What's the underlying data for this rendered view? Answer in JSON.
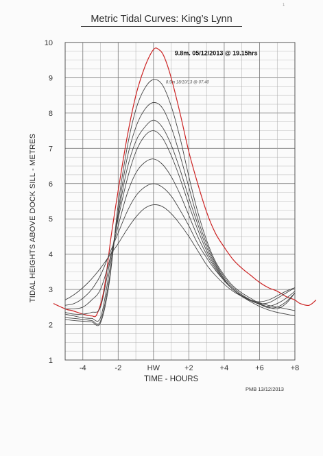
{
  "chart_data": {
    "type": "line",
    "title": "Metric Tidal Curves: King’s Lynn",
    "xlabel": "TIME - HOURS",
    "ylabel": "TIDAL HEIGHTS ABOVE DOCK SILL - METRES",
    "x_ticks": [
      {
        "value": -4,
        "label": "-4"
      },
      {
        "value": -2,
        "label": "-2"
      },
      {
        "value": 0,
        "label": "HW"
      },
      {
        "value": 2,
        "label": "+2"
      },
      {
        "value": 4,
        "label": "+4"
      },
      {
        "value": 6,
        "label": "+6"
      },
      {
        "value": 8,
        "label": "+8"
      }
    ],
    "y_ticks": [
      1,
      2,
      3,
      4,
      5,
      6,
      7,
      8,
      9,
      10
    ],
    "xlim": [
      -5,
      8
    ],
    "ylim": [
      1,
      10
    ],
    "grid": true,
    "series": [
      {
        "color": "#cc2222",
        "width": 1.2,
        "x": [
          -7.3,
          -6,
          -5,
          -4.6,
          -4,
          -3.5,
          -3.2,
          -2.8,
          -2.4,
          -2,
          -1.5,
          -1,
          -0.5,
          0,
          0.3,
          0.6,
          1,
          1.5,
          2,
          2.5,
          3,
          3.5,
          4,
          4.5,
          5,
          5.5,
          6,
          6.5,
          7,
          7.5,
          8,
          8.3,
          8.8,
          9.2
        ],
        "y": [
          3.2,
          2.7,
          2.45,
          2.4,
          2.3,
          2.25,
          2.3,
          3.0,
          4.5,
          5.8,
          7.3,
          8.5,
          9.3,
          9.8,
          9.8,
          9.6,
          9.0,
          8.0,
          6.9,
          6.0,
          5.2,
          4.6,
          4.2,
          3.85,
          3.6,
          3.4,
          3.2,
          3.05,
          2.95,
          2.8,
          2.7,
          2.6,
          2.55,
          2.7
        ]
      },
      {
        "color": "#444444",
        "width": 0.9,
        "x": [
          -5,
          -4.5,
          -4,
          -3.5,
          -3,
          -2.5,
          -2,
          -1.5,
          -1,
          -0.5,
          0,
          0.5,
          1,
          1.5,
          2,
          2.5,
          3,
          3.5,
          4,
          4.5,
          5,
          5.5,
          6,
          6.5,
          7,
          7.5,
          8
        ],
        "y": [
          2.15,
          2.12,
          2.1,
          2.08,
          2.05,
          3.2,
          5.4,
          7.0,
          8.1,
          8.7,
          8.95,
          8.8,
          8.2,
          7.3,
          6.2,
          5.2,
          4.4,
          3.8,
          3.4,
          3.1,
          2.9,
          2.75,
          2.6,
          2.5,
          2.45,
          2.6,
          2.9
        ]
      },
      {
        "color": "#444444",
        "width": 0.9,
        "x": [
          -5,
          -4.5,
          -4,
          -3.5,
          -3,
          -2.5,
          -2,
          -1.5,
          -1,
          -0.5,
          0,
          0.5,
          1,
          1.5,
          2,
          2.5,
          3,
          3.5,
          4,
          4.5,
          5,
          5.5,
          6,
          6.5,
          7,
          7.5,
          8
        ],
        "y": [
          2.2,
          2.18,
          2.15,
          2.12,
          2.1,
          3.3,
          5.2,
          6.7,
          7.6,
          8.1,
          8.3,
          8.15,
          7.6,
          6.8,
          5.9,
          5.0,
          4.3,
          3.75,
          3.35,
          3.05,
          2.85,
          2.7,
          2.58,
          2.48,
          2.5,
          2.65,
          2.9
        ]
      },
      {
        "color": "#444444",
        "width": 0.9,
        "x": [
          -5,
          -4.5,
          -4,
          -3.5,
          -3,
          -2.5,
          -2,
          -1.5,
          -1,
          -0.5,
          0,
          0.5,
          1,
          1.5,
          2,
          2.5,
          3,
          3.5,
          4,
          4.5,
          5,
          5.5,
          6,
          6.5,
          7,
          7.5,
          8
        ],
        "y": [
          2.3,
          2.25,
          2.2,
          2.18,
          2.2,
          3.5,
          5.1,
          6.4,
          7.2,
          7.6,
          7.8,
          7.6,
          7.1,
          6.4,
          5.6,
          4.85,
          4.2,
          3.7,
          3.3,
          3.0,
          2.82,
          2.68,
          2.58,
          2.52,
          2.6,
          2.75,
          2.95
        ]
      },
      {
        "color": "#444444",
        "width": 0.9,
        "x": [
          -5,
          -4.5,
          -4,
          -3.5,
          -3,
          -2.5,
          -2,
          -1.5,
          -1,
          -0.5,
          0,
          0.5,
          1,
          1.5,
          2,
          2.5,
          3,
          3.5,
          4,
          4.5,
          5,
          5.5,
          6,
          6.5,
          7,
          7.5,
          8
        ],
        "y": [
          2.35,
          2.3,
          2.3,
          2.35,
          2.5,
          3.7,
          5.0,
          6.1,
          6.9,
          7.35,
          7.5,
          7.3,
          6.8,
          6.15,
          5.4,
          4.7,
          4.1,
          3.65,
          3.28,
          3.0,
          2.8,
          2.68,
          2.6,
          2.62,
          2.75,
          2.9,
          3.05
        ]
      },
      {
        "color": "#444444",
        "width": 0.9,
        "x": [
          -5,
          -4.5,
          -4,
          -3.5,
          -3,
          -2.5,
          -2,
          -1.5,
          -1,
          -0.5,
          0,
          0.5,
          1,
          1.5,
          2,
          2.5,
          3,
          3.5,
          4,
          4.5,
          5,
          5.5,
          6,
          6.5,
          7,
          7.5,
          8
        ],
        "y": [
          2.45,
          2.45,
          2.5,
          2.7,
          3.0,
          3.8,
          4.8,
          5.7,
          6.3,
          6.6,
          6.7,
          6.55,
          6.2,
          5.7,
          5.1,
          4.5,
          4.0,
          3.6,
          3.25,
          3.0,
          2.82,
          2.7,
          2.65,
          2.7,
          2.82,
          2.95,
          3.05
        ]
      },
      {
        "color": "#444444",
        "width": 0.9,
        "x": [
          -5,
          -4.5,
          -4,
          -3.5,
          -3,
          -2.5,
          -2,
          -1.5,
          -1,
          -0.5,
          0,
          0.5,
          1,
          1.5,
          2,
          2.5,
          3,
          3.5,
          4,
          4.5,
          5,
          5.5,
          6,
          6.5,
          7,
          7.5,
          8
        ],
        "y": [
          2.55,
          2.6,
          2.75,
          3.0,
          3.4,
          4.0,
          4.6,
          5.2,
          5.65,
          5.9,
          6.0,
          5.9,
          5.65,
          5.25,
          4.8,
          4.3,
          3.9,
          3.55,
          3.25,
          3.0,
          2.82,
          2.7,
          2.62,
          2.55,
          2.5,
          2.45,
          2.4
        ]
      },
      {
        "color": "#444444",
        "width": 0.9,
        "x": [
          -5,
          -4.5,
          -4,
          -3.5,
          -3,
          -2.5,
          -2,
          -1.5,
          -1,
          -0.5,
          0,
          0.5,
          1,
          1.5,
          2,
          2.5,
          3,
          3.5,
          4,
          4.5,
          5,
          5.5,
          6,
          6.5,
          7,
          7.5,
          8
        ],
        "y": [
          2.7,
          2.85,
          3.05,
          3.3,
          3.6,
          3.95,
          4.3,
          4.7,
          5.05,
          5.3,
          5.4,
          5.35,
          5.15,
          4.85,
          4.5,
          4.1,
          3.7,
          3.4,
          3.15,
          2.95,
          2.8,
          2.65,
          2.52,
          2.42,
          2.35,
          2.3,
          2.25
        ]
      }
    ],
    "annotations": [
      {
        "text": "9.8m. 05/12/2013 @ 19.15hrs",
        "x": 1.2,
        "y": 9.7
      },
      {
        "text": "8.9m 18/10/13 @ 07.40",
        "x": 0.7,
        "y": 8.9
      }
    ]
  },
  "footer_text": "PMB 13/12/2013",
  "corner_text": "1"
}
